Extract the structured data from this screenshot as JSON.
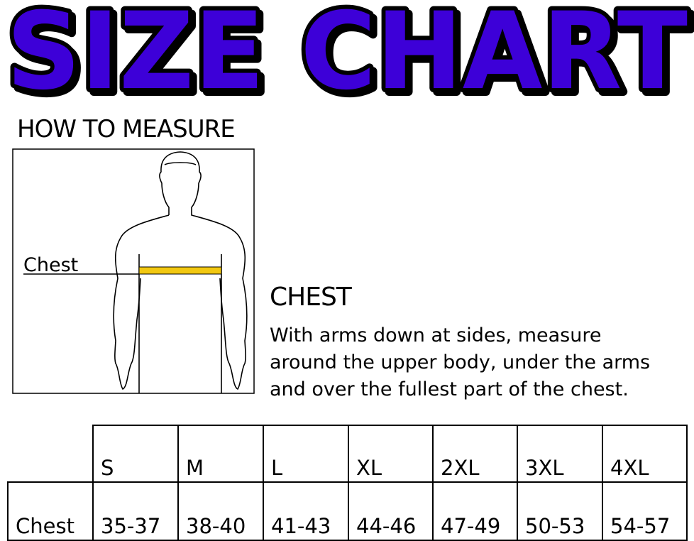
{
  "title": "SIZE CHART",
  "how_to_measure": {
    "heading": "HOW TO MEASURE",
    "figure_label": "Chest"
  },
  "instructions": {
    "heading": "CHEST",
    "lines": [
      "With arms down at sides, measure",
      "around the upper body, under the arms",
      "and over the fullest part of the chest."
    ]
  },
  "table": {
    "sizes": [
      "S",
      "M",
      "L",
      "XL",
      "2XL",
      "3XL",
      "4XL"
    ],
    "rows": [
      {
        "label": "Chest",
        "values": [
          "35-37",
          "38-40",
          "41-43",
          "44-46",
          "47-49",
          "50-53",
          "54-57"
        ]
      }
    ]
  },
  "colors": {
    "title_fill": "#3d00d8",
    "tape": "#f2c811"
  }
}
